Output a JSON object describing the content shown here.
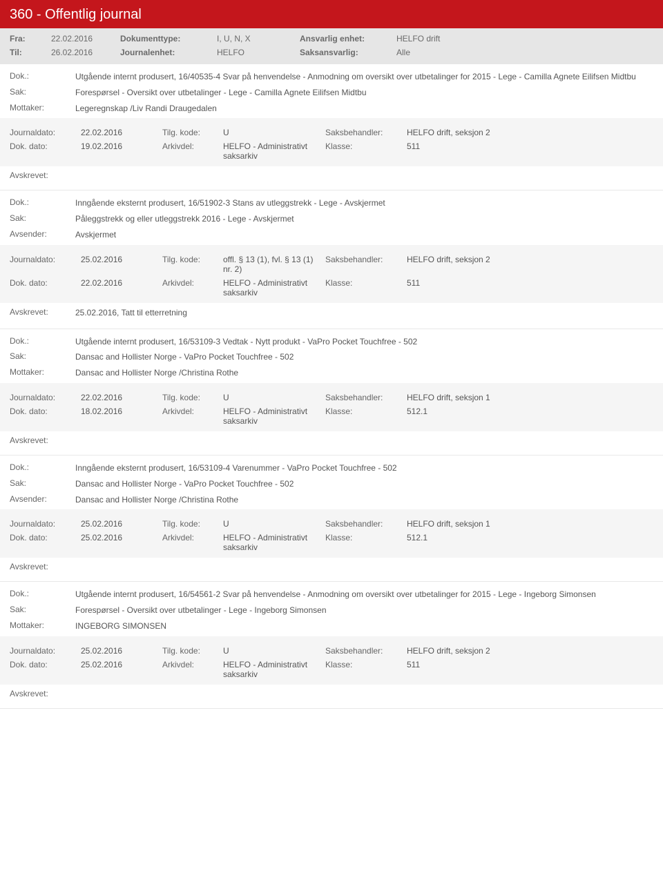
{
  "header": {
    "title": "360 - Offentlig journal"
  },
  "meta": {
    "fra_label": "Fra:",
    "fra_value": "22.02.2016",
    "til_label": "Til:",
    "til_value": "26.02.2016",
    "doktype_label": "Dokumenttype:",
    "doktype_value": "I, U, N, X",
    "journalenhet_label": "Journalenhet:",
    "journalenhet_value": "HELFO",
    "ansvarlig_label": "Ansvarlig enhet:",
    "ansvarlig_value": "HELFO drift",
    "saksansvarlig_label": "Saksansvarlig:",
    "saksansvarlig_value": "Alle"
  },
  "labels": {
    "dok": "Dok.:",
    "sak": "Sak:",
    "mottaker": "Mottaker:",
    "avsender": "Avsender:",
    "journaldato": "Journaldato:",
    "dokdato": "Dok. dato:",
    "tilgkode": "Tilg. kode:",
    "arkivdel": "Arkivdel:",
    "saksbehandler": "Saksbehandler:",
    "klasse": "Klasse:",
    "avskrevet": "Avskrevet:"
  },
  "entries": [
    {
      "dok": "Utgående internt produsert, 16/40535-4 Svar på henvendelse - Anmodning om oversikt over utbetalinger for 2015 - Lege - Camilla Agnete Eilifsen Midtbu",
      "sak": "Forespørsel - Oversikt over utbetalinger - Lege - Camilla Agnete Eilifsen Midtbu",
      "party_label": "Mottaker:",
      "party_value": "Legeregnskap /Liv Randi Draugedalen",
      "journaldato": "22.02.2016",
      "tilgkode": "U",
      "saksbehandler": "HELFO drift, seksjon 2",
      "dokdato": "19.02.2016",
      "arkivdel": "HELFO - Administrativt saksarkiv",
      "klasse": "511",
      "avskrevet": ""
    },
    {
      "dok": "Inngående eksternt produsert, 16/51902-3 Stans av utleggstrekk  - Lege - Avskjermet",
      "sak": "Påleggstrekk og eller utleggstrekk 2016 - Lege - Avskjermet",
      "party_label": "Avsender:",
      "party_value": "Avskjermet",
      "journaldato": "25.02.2016",
      "tilgkode": "offl. § 13 (1), fvl. § 13 (1) nr. 2)",
      "saksbehandler": "HELFO drift, seksjon 2",
      "dokdato": "22.02.2016",
      "arkivdel": "HELFO - Administrativt saksarkiv",
      "klasse": "511",
      "avskrevet": "25.02.2016, Tatt til etterretning"
    },
    {
      "dok": "Utgående internt produsert, 16/53109-3 Vedtak - Nytt produkt - VaPro Pocket Touchfree - 502",
      "sak": "Dansac and Hollister Norge - VaPro Pocket Touchfree - 502",
      "party_label": "Mottaker:",
      "party_value": "Dansac and Hollister Norge /Christina Rothe",
      "journaldato": "22.02.2016",
      "tilgkode": "U",
      "saksbehandler": "HELFO drift, seksjon 1",
      "dokdato": "18.02.2016",
      "arkivdel": "HELFO - Administrativt saksarkiv",
      "klasse": "512.1",
      "avskrevet": ""
    },
    {
      "dok": "Inngående eksternt produsert, 16/53109-4 Varenummer - VaPro Pocket Touchfree - 502",
      "sak": "Dansac and Hollister Norge - VaPro Pocket Touchfree - 502",
      "party_label": "Avsender:",
      "party_value": "Dansac and Hollister Norge /Christina Rothe",
      "journaldato": "25.02.2016",
      "tilgkode": "U",
      "saksbehandler": "HELFO drift, seksjon 1",
      "dokdato": "25.02.2016",
      "arkivdel": "HELFO - Administrativt saksarkiv",
      "klasse": "512.1",
      "avskrevet": ""
    },
    {
      "dok": "Utgående internt produsert, 16/54561-2 Svar på henvendelse - Anmodning om oversikt over utbetalinger for 2015 - Lege - Ingeborg Simonsen",
      "sak": "Forespørsel - Oversikt over utbetalinger - Lege - Ingeborg Simonsen",
      "party_label": "Mottaker:",
      "party_value": "INGEBORG SIMONSEN",
      "journaldato": "25.02.2016",
      "tilgkode": "U",
      "saksbehandler": "HELFO drift, seksjon 2",
      "dokdato": "25.02.2016",
      "arkivdel": "HELFO - Administrativt saksarkiv",
      "klasse": "511",
      "avskrevet": ""
    }
  ],
  "colors": {
    "header_bg": "#c4161c",
    "meta_bg": "#e6e6e6",
    "shaded_bg": "#f5f5f5",
    "text": "#555555",
    "label": "#666666"
  }
}
